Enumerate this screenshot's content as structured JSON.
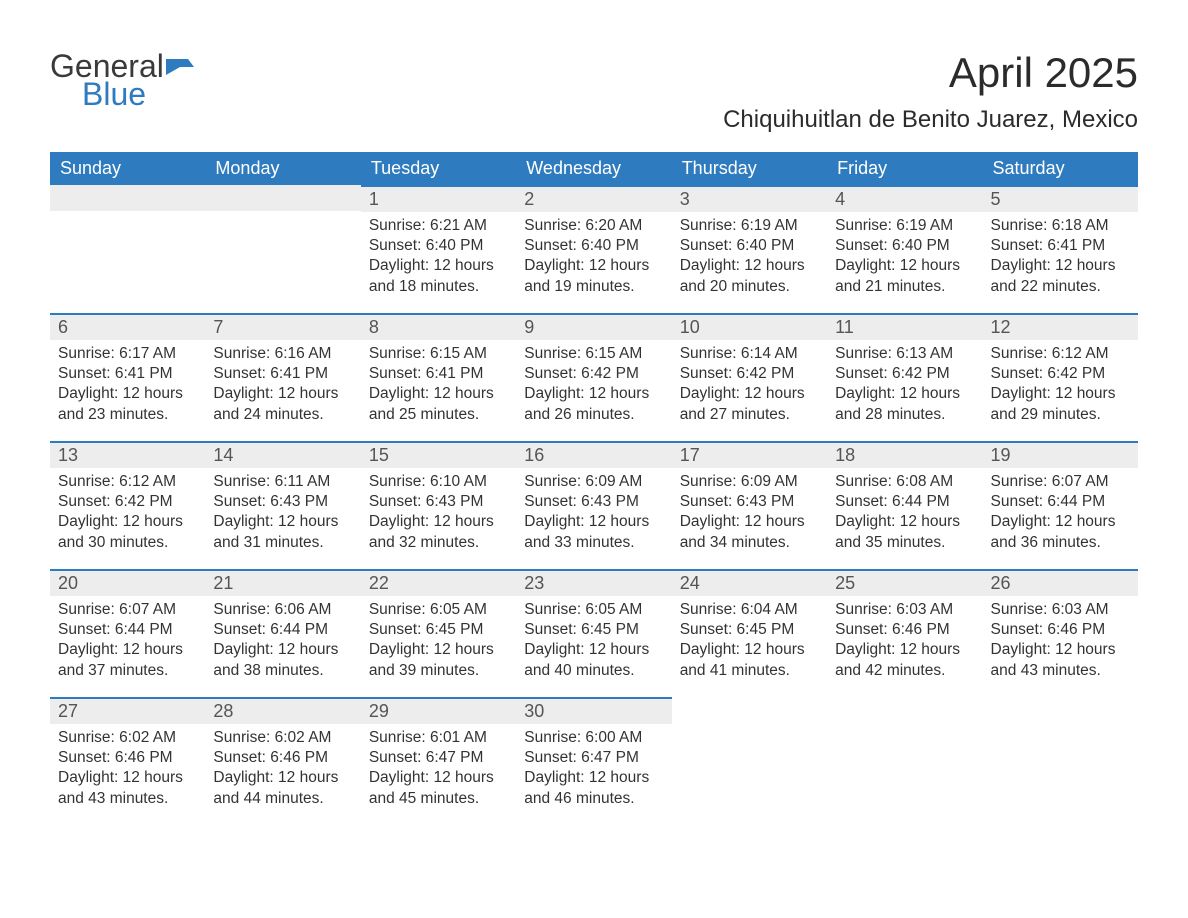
{
  "logo": {
    "word1": "General",
    "word2": "Blue"
  },
  "title": "April 2025",
  "subtitle": "Chiquihuitlan de Benito Juarez, Mexico",
  "colors": {
    "header_bg": "#2f7bbf",
    "header_text": "#ffffff",
    "daynum_bg": "#ededed",
    "rule": "#2f7bbf",
    "text": "#333333"
  },
  "weekdays": [
    "Sunday",
    "Monday",
    "Tuesday",
    "Wednesday",
    "Thursday",
    "Friday",
    "Saturday"
  ],
  "leading_blanks": 2,
  "trailing_blanks": 3,
  "labels": {
    "sunrise": "Sunrise",
    "sunset": "Sunset",
    "daylight": "Daylight"
  },
  "days": [
    {
      "n": 1,
      "sunrise": "6:21 AM",
      "sunset": "6:40 PM",
      "daylight": "12 hours and 18 minutes."
    },
    {
      "n": 2,
      "sunrise": "6:20 AM",
      "sunset": "6:40 PM",
      "daylight": "12 hours and 19 minutes."
    },
    {
      "n": 3,
      "sunrise": "6:19 AM",
      "sunset": "6:40 PM",
      "daylight": "12 hours and 20 minutes."
    },
    {
      "n": 4,
      "sunrise": "6:19 AM",
      "sunset": "6:40 PM",
      "daylight": "12 hours and 21 minutes."
    },
    {
      "n": 5,
      "sunrise": "6:18 AM",
      "sunset": "6:41 PM",
      "daylight": "12 hours and 22 minutes."
    },
    {
      "n": 6,
      "sunrise": "6:17 AM",
      "sunset": "6:41 PM",
      "daylight": "12 hours and 23 minutes."
    },
    {
      "n": 7,
      "sunrise": "6:16 AM",
      "sunset": "6:41 PM",
      "daylight": "12 hours and 24 minutes."
    },
    {
      "n": 8,
      "sunrise": "6:15 AM",
      "sunset": "6:41 PM",
      "daylight": "12 hours and 25 minutes."
    },
    {
      "n": 9,
      "sunrise": "6:15 AM",
      "sunset": "6:42 PM",
      "daylight": "12 hours and 26 minutes."
    },
    {
      "n": 10,
      "sunrise": "6:14 AM",
      "sunset": "6:42 PM",
      "daylight": "12 hours and 27 minutes."
    },
    {
      "n": 11,
      "sunrise": "6:13 AM",
      "sunset": "6:42 PM",
      "daylight": "12 hours and 28 minutes."
    },
    {
      "n": 12,
      "sunrise": "6:12 AM",
      "sunset": "6:42 PM",
      "daylight": "12 hours and 29 minutes."
    },
    {
      "n": 13,
      "sunrise": "6:12 AM",
      "sunset": "6:42 PM",
      "daylight": "12 hours and 30 minutes."
    },
    {
      "n": 14,
      "sunrise": "6:11 AM",
      "sunset": "6:43 PM",
      "daylight": "12 hours and 31 minutes."
    },
    {
      "n": 15,
      "sunrise": "6:10 AM",
      "sunset": "6:43 PM",
      "daylight": "12 hours and 32 minutes."
    },
    {
      "n": 16,
      "sunrise": "6:09 AM",
      "sunset": "6:43 PM",
      "daylight": "12 hours and 33 minutes."
    },
    {
      "n": 17,
      "sunrise": "6:09 AM",
      "sunset": "6:43 PM",
      "daylight": "12 hours and 34 minutes."
    },
    {
      "n": 18,
      "sunrise": "6:08 AM",
      "sunset": "6:44 PM",
      "daylight": "12 hours and 35 minutes."
    },
    {
      "n": 19,
      "sunrise": "6:07 AM",
      "sunset": "6:44 PM",
      "daylight": "12 hours and 36 minutes."
    },
    {
      "n": 20,
      "sunrise": "6:07 AM",
      "sunset": "6:44 PM",
      "daylight": "12 hours and 37 minutes."
    },
    {
      "n": 21,
      "sunrise": "6:06 AM",
      "sunset": "6:44 PM",
      "daylight": "12 hours and 38 minutes."
    },
    {
      "n": 22,
      "sunrise": "6:05 AM",
      "sunset": "6:45 PM",
      "daylight": "12 hours and 39 minutes."
    },
    {
      "n": 23,
      "sunrise": "6:05 AM",
      "sunset": "6:45 PM",
      "daylight": "12 hours and 40 minutes."
    },
    {
      "n": 24,
      "sunrise": "6:04 AM",
      "sunset": "6:45 PM",
      "daylight": "12 hours and 41 minutes."
    },
    {
      "n": 25,
      "sunrise": "6:03 AM",
      "sunset": "6:46 PM",
      "daylight": "12 hours and 42 minutes."
    },
    {
      "n": 26,
      "sunrise": "6:03 AM",
      "sunset": "6:46 PM",
      "daylight": "12 hours and 43 minutes."
    },
    {
      "n": 27,
      "sunrise": "6:02 AM",
      "sunset": "6:46 PM",
      "daylight": "12 hours and 43 minutes."
    },
    {
      "n": 28,
      "sunrise": "6:02 AM",
      "sunset": "6:46 PM",
      "daylight": "12 hours and 44 minutes."
    },
    {
      "n": 29,
      "sunrise": "6:01 AM",
      "sunset": "6:47 PM",
      "daylight": "12 hours and 45 minutes."
    },
    {
      "n": 30,
      "sunrise": "6:00 AM",
      "sunset": "6:47 PM",
      "daylight": "12 hours and 46 minutes."
    }
  ]
}
